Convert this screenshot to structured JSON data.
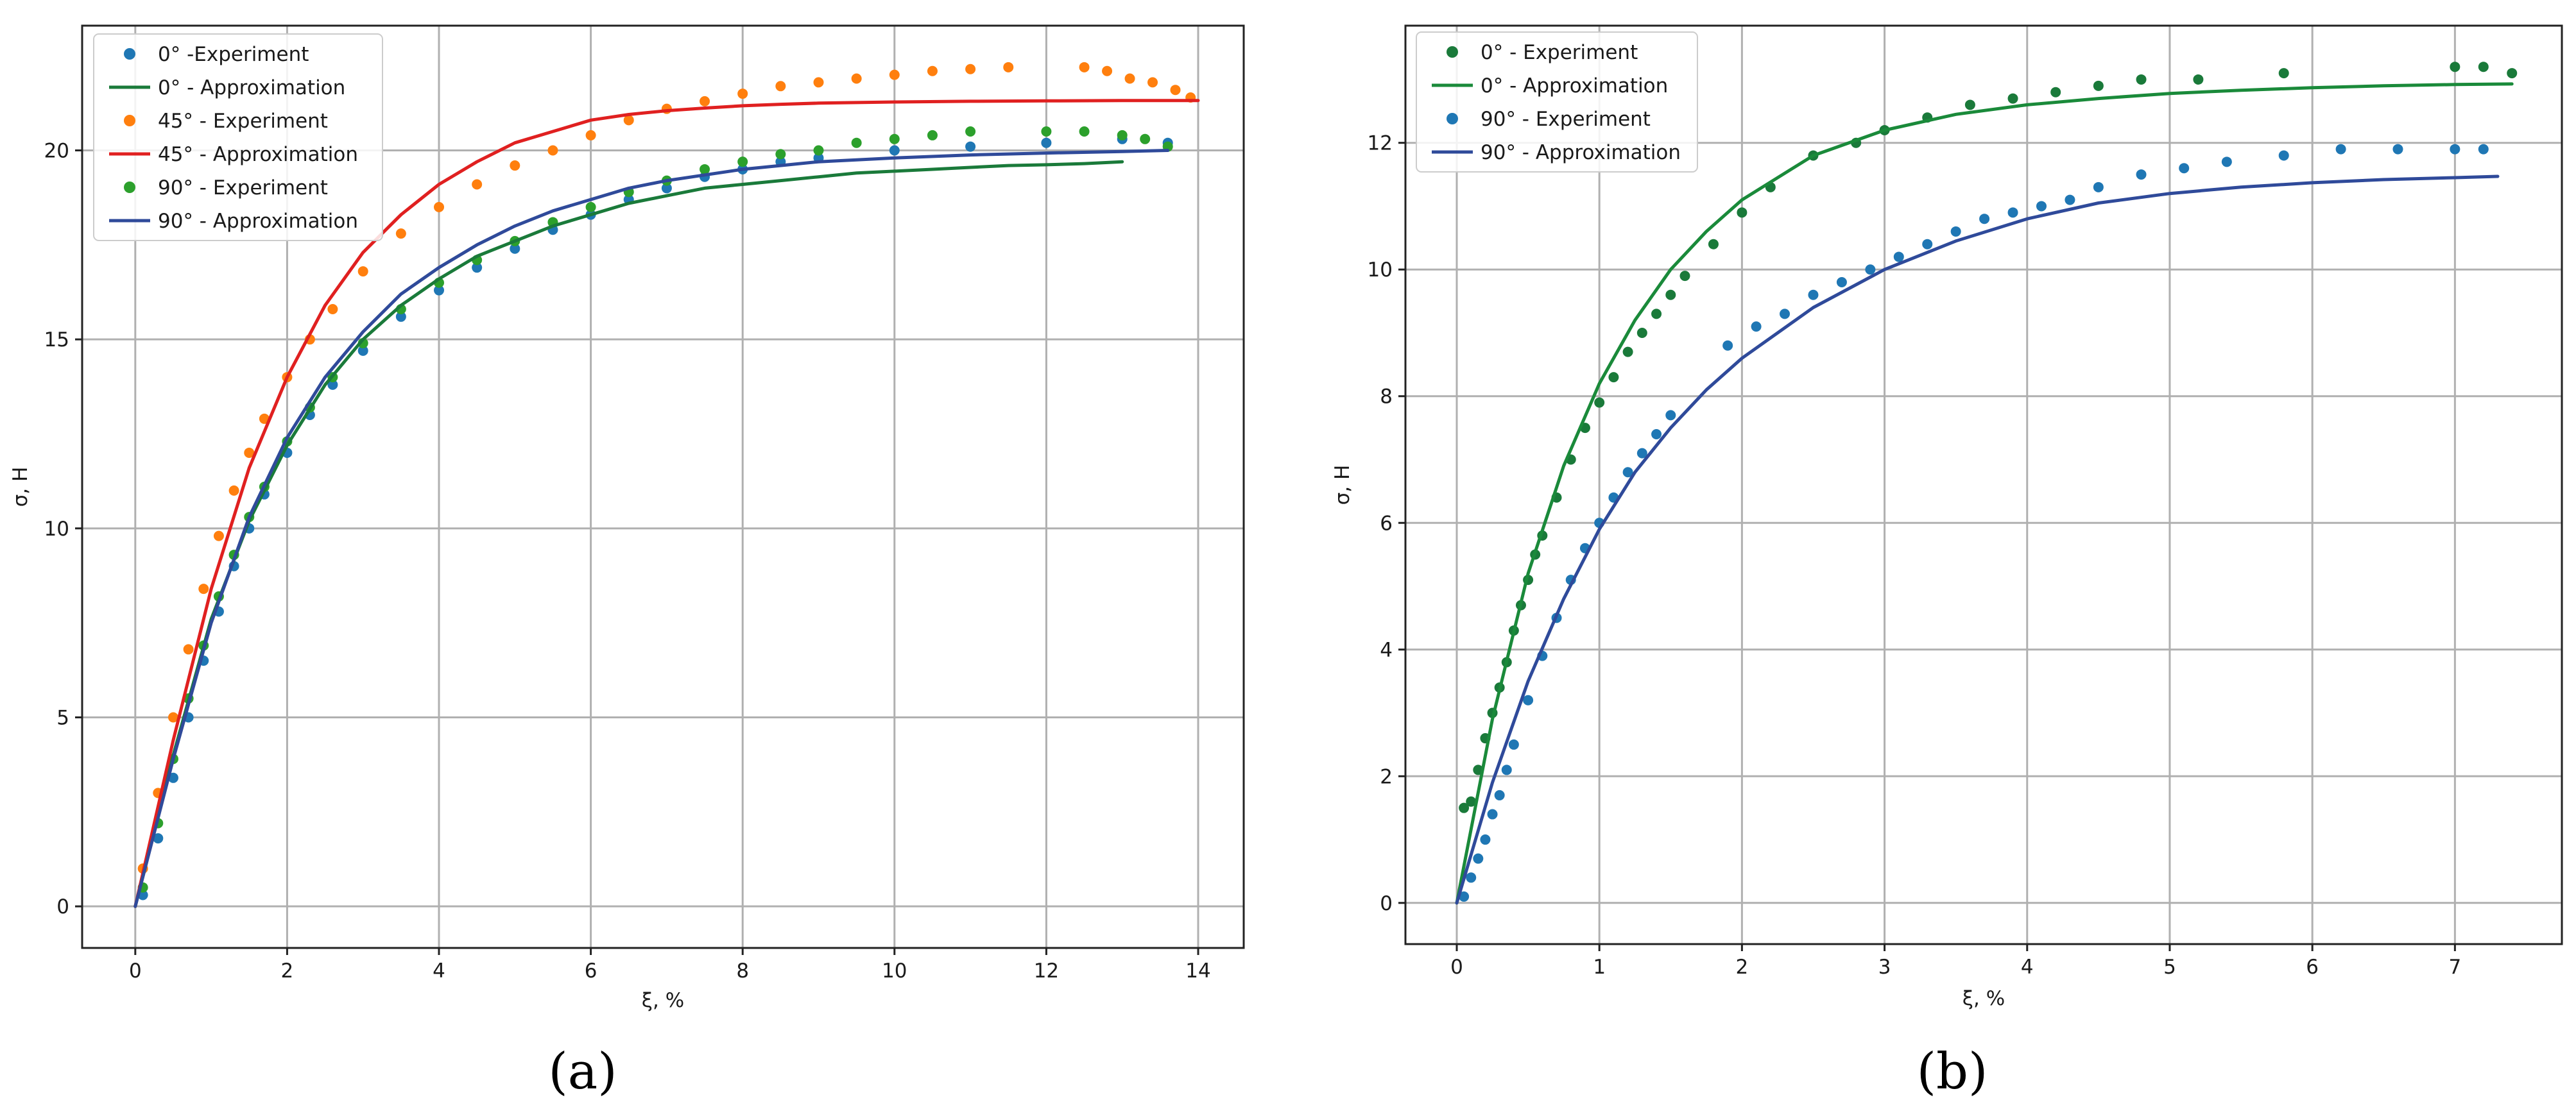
{
  "chart_data": [
    {
      "type": "scatter",
      "caption": "(a)",
      "title": "",
      "xlabel": "ξ, %",
      "ylabel": "σ, H",
      "xlim": [
        -0.7,
        14.6
      ],
      "ylim": [
        -1.1,
        23.3
      ],
      "xticks": [
        0,
        2,
        4,
        6,
        8,
        10,
        12,
        14
      ],
      "xtick_labels": [
        "0",
        "2",
        "4",
        "6",
        "8",
        "10",
        "12",
        "14"
      ],
      "yticks": [
        0,
        5,
        10,
        15,
        20
      ],
      "ytick_labels": [
        "0",
        "5",
        "10",
        "15",
        "20"
      ],
      "grid": true,
      "legend_position": "top-left",
      "legend": [
        {
          "label": "0° -Experiment",
          "kind": "marker",
          "color": "#1f77b4"
        },
        {
          "label": "0° - Approximation",
          "kind": "line",
          "color": "#1a7a3a"
        },
        {
          "label": "45° - Experiment",
          "kind": "marker",
          "color": "#ff7f0e"
        },
        {
          "label": "45° - Approximation",
          "kind": "line",
          "color": "#e02020"
        },
        {
          "label": "90° - Experiment",
          "kind": "marker",
          "color": "#2ca02c"
        },
        {
          "label": "90° - Approximation",
          "kind": "line",
          "color": "#2f4a9a"
        }
      ],
      "series": [
        {
          "name": "0° -Experiment",
          "kind": "scatter",
          "color": "#1f77b4",
          "x": [
            0.1,
            0.3,
            0.5,
            0.7,
            0.9,
            1.1,
            1.3,
            1.5,
            1.7,
            2.0,
            2.3,
            2.6,
            3.0,
            3.5,
            4.0,
            4.5,
            5.0,
            5.5,
            6.0,
            6.5,
            7.0,
            7.5,
            8.0,
            8.5,
            9.0,
            10.0,
            11.0,
            12.0,
            13.0,
            13.6
          ],
          "y": [
            0.3,
            1.8,
            3.4,
            5.0,
            6.5,
            7.8,
            9.0,
            10.0,
            10.9,
            12.0,
            13.0,
            13.8,
            14.7,
            15.6,
            16.3,
            16.9,
            17.4,
            17.9,
            18.3,
            18.7,
            19.0,
            19.3,
            19.5,
            19.7,
            19.8,
            20.0,
            20.1,
            20.2,
            20.3,
            20.2
          ]
        },
        {
          "name": "0° - Approximation",
          "kind": "line",
          "color": "#1a7a3a",
          "x": [
            0,
            0.5,
            1,
            1.5,
            2,
            2.5,
            3,
            3.5,
            4,
            4.5,
            5,
            5.5,
            6,
            6.5,
            7,
            7.5,
            8,
            8.5,
            9,
            9.5,
            10,
            10.5,
            11,
            11.5,
            12,
            12.5,
            13
          ],
          "y": [
            0,
            4.0,
            7.6,
            10.2,
            12.2,
            13.8,
            15.0,
            15.9,
            16.6,
            17.2,
            17.6,
            18.0,
            18.3,
            18.6,
            18.8,
            19.0,
            19.1,
            19.2,
            19.3,
            19.4,
            19.45,
            19.5,
            19.55,
            19.6,
            19.62,
            19.65,
            19.7
          ]
        },
        {
          "name": "45° - Experiment",
          "kind": "scatter",
          "color": "#ff7f0e",
          "x": [
            0.1,
            0.3,
            0.5,
            0.7,
            0.9,
            1.1,
            1.3,
            1.5,
            1.7,
            2.0,
            2.3,
            2.6,
            3.0,
            3.5,
            4.0,
            4.5,
            5.0,
            5.5,
            6.0,
            6.5,
            7.0,
            7.5,
            8.0,
            8.5,
            9.0,
            9.5,
            10.0,
            10.5,
            11.0,
            11.5,
            12.5,
            12.8,
            13.1,
            13.4,
            13.7,
            13.9
          ],
          "y": [
            1.0,
            3.0,
            5.0,
            6.8,
            8.4,
            9.8,
            11.0,
            12.0,
            12.9,
            14.0,
            15.0,
            15.8,
            16.8,
            17.8,
            18.5,
            19.1,
            19.6,
            20.0,
            20.4,
            20.8,
            21.1,
            21.3,
            21.5,
            21.7,
            21.8,
            21.9,
            22.0,
            22.1,
            22.15,
            22.2,
            22.2,
            22.1,
            21.9,
            21.8,
            21.6,
            21.4
          ]
        },
        {
          "name": "45° - Approximation",
          "kind": "line",
          "color": "#e02020",
          "x": [
            0,
            0.5,
            1,
            1.5,
            2,
            2.5,
            3,
            3.5,
            4,
            4.5,
            5,
            5.5,
            6,
            6.5,
            7,
            7.5,
            8,
            8.5,
            9,
            10,
            11,
            12,
            13,
            14
          ],
          "y": [
            0,
            4.4,
            8.4,
            11.6,
            14.0,
            15.9,
            17.3,
            18.3,
            19.1,
            19.7,
            20.2,
            20.5,
            20.8,
            20.95,
            21.05,
            21.12,
            21.18,
            21.22,
            21.25,
            21.28,
            21.3,
            21.31,
            21.32,
            21.32
          ]
        },
        {
          "name": "90° - Experiment",
          "kind": "scatter",
          "color": "#2ca02c",
          "x": [
            0.1,
            0.3,
            0.5,
            0.7,
            0.9,
            1.1,
            1.3,
            1.5,
            1.7,
            2.0,
            2.3,
            2.6,
            3.0,
            3.5,
            4.0,
            4.5,
            5.0,
            5.5,
            6.0,
            6.5,
            7.0,
            7.5,
            8.0,
            8.5,
            9.0,
            9.5,
            10.0,
            10.5,
            11.0,
            12.0,
            12.5,
            13.0,
            13.3,
            13.6
          ],
          "y": [
            0.5,
            2.2,
            3.9,
            5.5,
            6.9,
            8.2,
            9.3,
            10.3,
            11.1,
            12.3,
            13.2,
            14.0,
            14.9,
            15.8,
            16.5,
            17.1,
            17.6,
            18.1,
            18.5,
            18.9,
            19.2,
            19.5,
            19.7,
            19.9,
            20.0,
            20.2,
            20.3,
            20.4,
            20.5,
            20.5,
            20.5,
            20.4,
            20.3,
            20.1
          ]
        },
        {
          "name": "90° - Approximation",
          "kind": "line",
          "color": "#2f4a9a",
          "x": [
            0,
            0.5,
            1,
            1.5,
            2,
            2.5,
            3,
            3.5,
            4,
            4.5,
            5,
            5.5,
            6,
            6.5,
            7,
            7.5,
            8,
            8.5,
            9,
            10,
            11,
            12,
            13,
            13.6
          ],
          "y": [
            0,
            3.9,
            7.5,
            10.3,
            12.4,
            14.0,
            15.2,
            16.2,
            16.9,
            17.5,
            18.0,
            18.4,
            18.7,
            19.0,
            19.2,
            19.35,
            19.5,
            19.6,
            19.7,
            19.8,
            19.88,
            19.93,
            19.97,
            20.0
          ]
        }
      ]
    },
    {
      "type": "scatter",
      "caption": "(b)",
      "title": "",
      "xlabel": "ξ, %",
      "ylabel": "σ, H",
      "xlim": [
        -0.36,
        7.75
      ],
      "ylim": [
        -0.65,
        13.85
      ],
      "xticks": [
        0,
        1,
        2,
        3,
        4,
        5,
        6,
        7
      ],
      "xtick_labels": [
        "0",
        "1",
        "2",
        "3",
        "4",
        "5",
        "6",
        "7"
      ],
      "yticks": [
        0,
        2,
        4,
        6,
        8,
        10,
        12
      ],
      "ytick_labels": [
        "0",
        "2",
        "4",
        "6",
        "8",
        "10",
        "12"
      ],
      "grid": true,
      "legend_position": "top-left",
      "legend": [
        {
          "label": "0° - Experiment",
          "kind": "marker",
          "color": "#1a7a3a"
        },
        {
          "label": "0° - Approximation",
          "kind": "line",
          "color": "#1a8a3a"
        },
        {
          "label": "90° - Experiment",
          "kind": "marker",
          "color": "#1f77b4"
        },
        {
          "label": "90° - Approximation",
          "kind": "line",
          "color": "#2f4a9a"
        }
      ],
      "series": [
        {
          "name": "0° - Experiment",
          "kind": "scatter",
          "color": "#1a7a3a",
          "x": [
            0.05,
            0.1,
            0.15,
            0.2,
            0.25,
            0.3,
            0.35,
            0.4,
            0.45,
            0.5,
            0.55,
            0.6,
            0.7,
            0.8,
            0.9,
            1.0,
            1.1,
            1.2,
            1.3,
            1.4,
            1.5,
            1.6,
            1.8,
            2.0,
            2.2,
            2.5,
            2.8,
            3.0,
            3.3,
            3.6,
            3.9,
            4.2,
            4.5,
            4.8,
            5.2,
            5.8,
            7.0,
            7.2,
            7.4
          ],
          "y": [
            1.5,
            1.6,
            2.1,
            2.6,
            3.0,
            3.4,
            3.8,
            4.3,
            4.7,
            5.1,
            5.5,
            5.8,
            6.4,
            7.0,
            7.5,
            7.9,
            8.3,
            8.7,
            9.0,
            9.3,
            9.6,
            9.9,
            10.4,
            10.9,
            11.3,
            11.8,
            12.0,
            12.2,
            12.4,
            12.6,
            12.7,
            12.8,
            12.9,
            13.0,
            13.0,
            13.1,
            13.2,
            13.2,
            13.1
          ]
        },
        {
          "name": "0° - Approximation",
          "kind": "line",
          "color": "#1a8a3a",
          "x": [
            0,
            0.25,
            0.5,
            0.75,
            1,
            1.25,
            1.5,
            1.75,
            2,
            2.5,
            3,
            3.5,
            4,
            4.5,
            5,
            5.5,
            6,
            6.5,
            7,
            7.4
          ],
          "y": [
            0,
            2.9,
            5.2,
            6.9,
            8.2,
            9.2,
            10.0,
            10.6,
            11.1,
            11.8,
            12.2,
            12.45,
            12.6,
            12.7,
            12.78,
            12.83,
            12.87,
            12.9,
            12.92,
            12.93
          ]
        },
        {
          "name": "90° - Experiment",
          "kind": "scatter",
          "color": "#1f77b4",
          "x": [
            0.05,
            0.1,
            0.15,
            0.2,
            0.25,
            0.3,
            0.35,
            0.4,
            0.5,
            0.6,
            0.7,
            0.8,
            0.9,
            1.0,
            1.1,
            1.2,
            1.3,
            1.4,
            1.5,
            1.9,
            2.1,
            2.3,
            2.5,
            2.7,
            2.9,
            3.1,
            3.3,
            3.5,
            3.7,
            3.9,
            4.1,
            4.3,
            4.5,
            4.8,
            5.1,
            5.4,
            5.8,
            6.2,
            6.6,
            7.0,
            7.2
          ],
          "y": [
            0.1,
            0.4,
            0.7,
            1.0,
            1.4,
            1.7,
            2.1,
            2.5,
            3.2,
            3.9,
            4.5,
            5.1,
            5.6,
            6.0,
            6.4,
            6.8,
            7.1,
            7.4,
            7.7,
            8.8,
            9.1,
            9.3,
            9.6,
            9.8,
            10.0,
            10.2,
            10.4,
            10.6,
            10.8,
            10.9,
            11.0,
            11.1,
            11.3,
            11.5,
            11.6,
            11.7,
            11.8,
            11.9,
            11.9,
            11.9,
            11.9
          ]
        },
        {
          "name": "90° - Approximation",
          "kind": "line",
          "color": "#2f4a9a",
          "x": [
            0,
            0.25,
            0.5,
            0.75,
            1,
            1.25,
            1.5,
            1.75,
            2,
            2.5,
            3,
            3.5,
            4,
            4.5,
            5,
            5.5,
            6,
            6.5,
            7,
            7.3
          ],
          "y": [
            0,
            1.9,
            3.5,
            4.8,
            5.9,
            6.8,
            7.5,
            8.1,
            8.6,
            9.4,
            10.0,
            10.45,
            10.8,
            11.05,
            11.2,
            11.3,
            11.37,
            11.42,
            11.45,
            11.47
          ]
        }
      ]
    }
  ]
}
